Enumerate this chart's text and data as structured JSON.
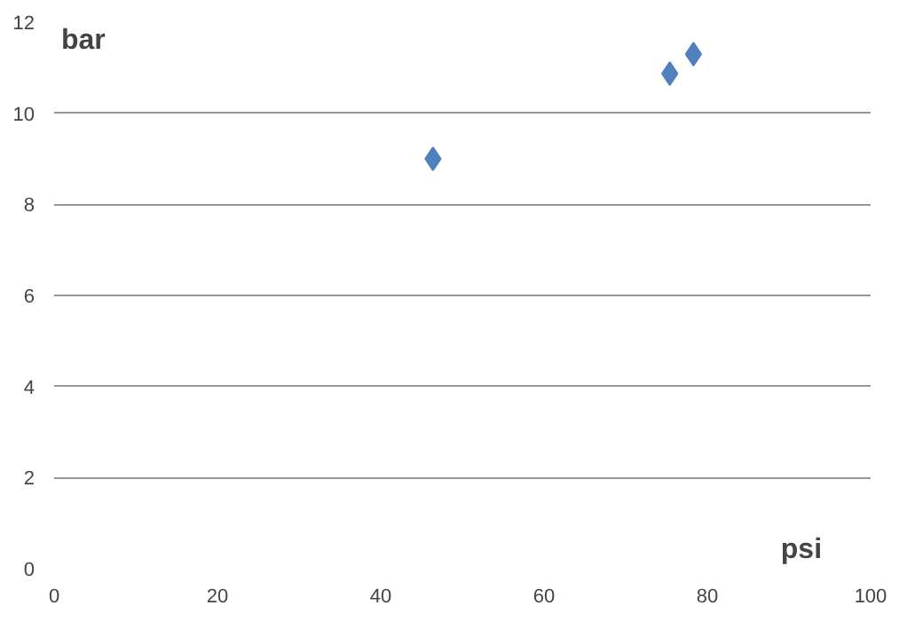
{
  "chart_data": {
    "type": "scatter",
    "xlabel": "psi",
    "ylabel": "bar",
    "x": [
      46.4,
      75.4,
      78.3
    ],
    "series": [
      {
        "color": "#4f81bd",
        "values": [
          9.0,
          10.87,
          11.3
        ]
      }
    ],
    "marker": "diamond",
    "grid": "y",
    "xlim": [
      0,
      100
    ],
    "xticks": [
      0,
      20,
      40,
      60,
      80,
      100
    ],
    "ylim": [
      0,
      12
    ],
    "yticks": [
      0,
      2,
      4,
      6,
      8,
      10,
      12
    ]
  }
}
